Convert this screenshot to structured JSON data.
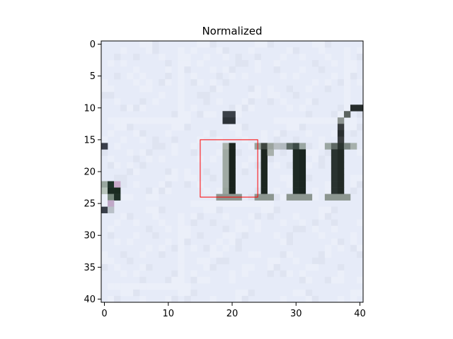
{
  "chart_data": {
    "type": "heatmap",
    "title": "Normalized",
    "xlabel": "",
    "ylabel": "",
    "x_ticks": [
      0,
      10,
      20,
      30,
      40
    ],
    "y_ticks": [
      0,
      5,
      10,
      15,
      20,
      25,
      30,
      35,
      40
    ],
    "xlim": [
      -0.5,
      40.5
    ],
    "ylim": [
      40.5,
      -0.5
    ],
    "image_size": [
      41,
      41
    ],
    "y_axis_inverted": true,
    "grid": false,
    "background_color": "#e6ebf8",
    "ink_color": "#15201a",
    "highlight_box": {
      "x0": 15,
      "y0": 15,
      "x1": 24,
      "y1": 24,
      "color": "#ff0000"
    },
    "dark_pixels": [
      [
        0,
        16,
        "#3a3f4a"
      ],
      [
        0,
        22,
        "#9aa8a0"
      ],
      [
        1,
        22,
        "#20332a"
      ],
      [
        2,
        22,
        "#c9a9c9"
      ],
      [
        0,
        23,
        "#b8c4bc"
      ],
      [
        1,
        23,
        "#1b2a22"
      ],
      [
        2,
        23,
        "#1a2a20"
      ],
      [
        1,
        24,
        "#7a8a80"
      ],
      [
        2,
        24,
        "#1f2f27"
      ],
      [
        1,
        25,
        "#c0a8c8"
      ],
      [
        0,
        26,
        "#3a3f4a"
      ],
      [
        1,
        26,
        "#b9c0c8"
      ],
      [
        19,
        11,
        "#3a4048"
      ],
      [
        20,
        11,
        "#3a4048"
      ],
      [
        19,
        12,
        "#2c3238"
      ],
      [
        20,
        12,
        "#2c3238"
      ],
      [
        19,
        16,
        "#aab2ac"
      ],
      [
        20,
        16,
        "#1a241e"
      ],
      [
        19,
        17,
        "#a0aaa4"
      ],
      [
        20,
        17,
        "#18221c"
      ],
      [
        19,
        18,
        "#a0aaa4"
      ],
      [
        20,
        18,
        "#18221c"
      ],
      [
        19,
        19,
        "#a0aaa4"
      ],
      [
        20,
        19,
        "#18221c"
      ],
      [
        19,
        20,
        "#a0aaa4"
      ],
      [
        20,
        20,
        "#18221c"
      ],
      [
        19,
        21,
        "#a0aaa4"
      ],
      [
        20,
        21,
        "#18221c"
      ],
      [
        19,
        22,
        "#a0aaa4"
      ],
      [
        20,
        22,
        "#18221c"
      ],
      [
        19,
        23,
        "#9aa69e"
      ],
      [
        20,
        23,
        "#18221c"
      ],
      [
        18,
        24,
        "#8c9690"
      ],
      [
        19,
        24,
        "#8c9690"
      ],
      [
        20,
        24,
        "#8c9690"
      ],
      [
        21,
        24,
        "#8c9690"
      ],
      [
        24,
        16,
        "#9aa49e"
      ],
      [
        25,
        16,
        "#3e4640"
      ],
      [
        26,
        16,
        "#9ba39e"
      ],
      [
        27,
        16,
        "#b8bec2"
      ],
      [
        25,
        17,
        "#1c2620"
      ],
      [
        26,
        17,
        "#a8b0ac"
      ],
      [
        25,
        18,
        "#1c2620"
      ],
      [
        25,
        19,
        "#1c2620"
      ],
      [
        25,
        20,
        "#1c2620"
      ],
      [
        25,
        21,
        "#1c2620"
      ],
      [
        25,
        22,
        "#1c2620"
      ],
      [
        25,
        23,
        "#1c2620"
      ],
      [
        24,
        24,
        "#8c9690"
      ],
      [
        25,
        24,
        "#8c9690"
      ],
      [
        26,
        24,
        "#8c9690"
      ],
      [
        28,
        16,
        "#b2bac0"
      ],
      [
        29,
        16,
        "#5c6a66"
      ],
      [
        30,
        16,
        "#3c4a46"
      ],
      [
        31,
        16,
        "#9aa6a2"
      ],
      [
        30,
        17,
        "#1e2a24"
      ],
      [
        31,
        17,
        "#1a2520"
      ],
      [
        30,
        18,
        "#1e2a24"
      ],
      [
        31,
        18,
        "#1a2520"
      ],
      [
        30,
        19,
        "#1e2a24"
      ],
      [
        31,
        19,
        "#1a2520"
      ],
      [
        30,
        20,
        "#1e2a24"
      ],
      [
        31,
        20,
        "#1a2520"
      ],
      [
        30,
        21,
        "#1e2a24"
      ],
      [
        31,
        21,
        "#1a2520"
      ],
      [
        30,
        22,
        "#1e2a24"
      ],
      [
        31,
        22,
        "#1a2520"
      ],
      [
        30,
        23,
        "#1e2a24"
      ],
      [
        31,
        23,
        "#1a2520"
      ],
      [
        29,
        24,
        "#8c9690"
      ],
      [
        30,
        24,
        "#8c9690"
      ],
      [
        31,
        24,
        "#8c9690"
      ],
      [
        32,
        24,
        "#8c9690"
      ],
      [
        40,
        10,
        "#262c2c"
      ],
      [
        39,
        10,
        "#262c2c"
      ],
      [
        38,
        11,
        "#5a625f"
      ],
      [
        37,
        12,
        "#8c9390"
      ],
      [
        37,
        13,
        "#3a3e40"
      ],
      [
        37,
        14,
        "#2a2f30"
      ],
      [
        37,
        15,
        "#3a3e40"
      ],
      [
        35,
        16,
        "#9aa6a2"
      ],
      [
        36,
        16,
        "#5e6864"
      ],
      [
        37,
        16,
        "#2a3330"
      ],
      [
        38,
        16,
        "#7c8784"
      ],
      [
        39,
        16,
        "#a6b0ac"
      ],
      [
        36,
        17,
        "#2a3330"
      ],
      [
        37,
        17,
        "#222a26"
      ],
      [
        36,
        18,
        "#2a3330"
      ],
      [
        37,
        18,
        "#222a26"
      ],
      [
        36,
        19,
        "#2a3330"
      ],
      [
        37,
        19,
        "#222a26"
      ],
      [
        36,
        20,
        "#2a3330"
      ],
      [
        37,
        20,
        "#222a26"
      ],
      [
        36,
        21,
        "#2a3330"
      ],
      [
        37,
        21,
        "#222a26"
      ],
      [
        36,
        22,
        "#2a3330"
      ],
      [
        37,
        22,
        "#222a26"
      ],
      [
        36,
        23,
        "#2a3330"
      ],
      [
        37,
        23,
        "#222a26"
      ],
      [
        35,
        24,
        "#8c9690"
      ],
      [
        36,
        24,
        "#8c9690"
      ],
      [
        37,
        24,
        "#8c9690"
      ],
      [
        38,
        24,
        "#8c9690"
      ]
    ]
  }
}
